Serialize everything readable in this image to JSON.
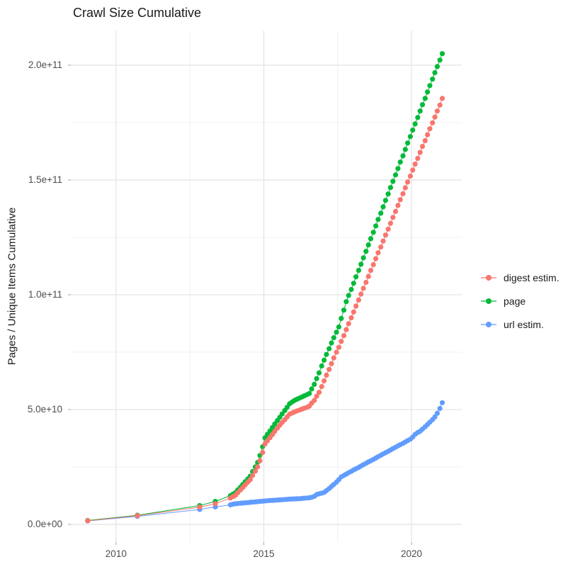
{
  "title": "Crawl Size Cumulative",
  "chart_data": {
    "type": "scatter",
    "title": "Crawl Size Cumulative",
    "xlabel": "",
    "ylabel": "Pages / Unique Items Cumulative",
    "x_unit": "year",
    "y_unit": "items (billions)",
    "xlim": [
      2008.47,
      2021.7
    ],
    "ylim_billions": [
      -7.7,
      215.1
    ],
    "grid": "major+minor",
    "legend_position": "right",
    "x_ticks": {
      "major": [
        {
          "v": 2010,
          "label": "2010"
        },
        {
          "v": 2015,
          "label": "2015"
        },
        {
          "v": 2020,
          "label": "2020"
        }
      ],
      "minor": [
        2012.5,
        2017.5
      ]
    },
    "y_ticks": {
      "major": [
        {
          "v": 0,
          "label": "0.0e+00"
        },
        {
          "v": 50,
          "label": "5.0e+10"
        },
        {
          "v": 100,
          "label": "1.0e+11"
        },
        {
          "v": 150,
          "label": "1.5e+11"
        },
        {
          "v": 200,
          "label": "2.0e+11"
        }
      ],
      "minor": [
        25,
        75,
        125,
        175
      ]
    },
    "draw_order": [
      "url estim.",
      "page",
      "digest estim."
    ],
    "series": [
      {
        "name": "digest estim.",
        "color": "#F8766D",
        "points": [
          [
            2009.04,
            1.6
          ],
          [
            2010.72,
            3.8
          ],
          [
            2012.83,
            7.5
          ],
          [
            2013.36,
            9.0
          ],
          [
            2013.87,
            11.5
          ],
          [
            2013.96,
            12.1
          ],
          [
            2014.04,
            12.7
          ],
          [
            2014.12,
            13.8
          ],
          [
            2014.21,
            15.0
          ],
          [
            2014.29,
            16.1
          ],
          [
            2014.37,
            17.2
          ],
          [
            2014.46,
            18.4
          ],
          [
            2014.54,
            19.5
          ],
          [
            2014.62,
            21.3
          ],
          [
            2014.71,
            23.2
          ],
          [
            2014.79,
            25.0
          ],
          [
            2014.87,
            27.7
          ],
          [
            2014.96,
            31.3
          ],
          [
            2015.04,
            35.0
          ],
          [
            2015.12,
            36.4
          ],
          [
            2015.21,
            37.8
          ],
          [
            2015.29,
            39.1
          ],
          [
            2015.37,
            40.5
          ],
          [
            2015.46,
            41.9
          ],
          [
            2015.54,
            43.2
          ],
          [
            2015.62,
            44.4
          ],
          [
            2015.71,
            45.6
          ],
          [
            2015.79,
            46.8
          ],
          [
            2015.87,
            48.0
          ],
          [
            2015.96,
            48.5
          ],
          [
            2016.04,
            49.0
          ],
          [
            2016.12,
            49.4
          ],
          [
            2016.21,
            49.8
          ],
          [
            2016.29,
            50.2
          ],
          [
            2016.37,
            50.6
          ],
          [
            2016.46,
            51.0
          ],
          [
            2016.54,
            51.5
          ],
          [
            2016.62,
            52.8
          ],
          [
            2016.71,
            54.0
          ],
          [
            2016.79,
            55.8
          ],
          [
            2016.87,
            57.5
          ],
          [
            2016.96,
            60.0
          ],
          [
            2017.04,
            62.5
          ],
          [
            2017.12,
            65.0
          ],
          [
            2017.21,
            67.5
          ],
          [
            2017.29,
            70.0
          ],
          [
            2017.37,
            72.5
          ],
          [
            2017.46,
            75.0
          ],
          [
            2017.54,
            77.1
          ],
          [
            2017.62,
            79.7
          ],
          [
            2017.71,
            82.2
          ],
          [
            2017.79,
            84.8
          ],
          [
            2017.87,
            87.4
          ],
          [
            2017.96,
            90.0
          ],
          [
            2018.04,
            92.5
          ],
          [
            2018.12,
            95.1
          ],
          [
            2018.21,
            97.7
          ],
          [
            2018.29,
            100.3
          ],
          [
            2018.37,
            102.8
          ],
          [
            2018.46,
            105.4
          ],
          [
            2018.54,
            108.0
          ],
          [
            2018.62,
            110.6
          ],
          [
            2018.71,
            113.1
          ],
          [
            2018.79,
            115.7
          ],
          [
            2018.87,
            118.3
          ],
          [
            2018.96,
            120.8
          ],
          [
            2019.04,
            123.4
          ],
          [
            2019.12,
            126.0
          ],
          [
            2019.21,
            128.6
          ],
          [
            2019.29,
            131.1
          ],
          [
            2019.37,
            133.7
          ],
          [
            2019.46,
            136.3
          ],
          [
            2019.54,
            138.9
          ],
          [
            2019.62,
            141.4
          ],
          [
            2019.71,
            144.0
          ],
          [
            2019.79,
            146.6
          ],
          [
            2019.87,
            149.1
          ],
          [
            2019.96,
            151.7
          ],
          [
            2020.04,
            154.3
          ],
          [
            2020.12,
            156.9
          ],
          [
            2020.21,
            159.4
          ],
          [
            2020.29,
            162.0
          ],
          [
            2020.37,
            164.6
          ],
          [
            2020.46,
            167.1
          ],
          [
            2020.54,
            169.7
          ],
          [
            2020.62,
            172.3
          ],
          [
            2020.71,
            174.9
          ],
          [
            2020.79,
            177.4
          ],
          [
            2020.87,
            180.0
          ],
          [
            2020.96,
            182.6
          ],
          [
            2021.04,
            185.5
          ]
        ]
      },
      {
        "name": "page",
        "color": "#00BA38",
        "points": [
          [
            2009.04,
            1.7
          ],
          [
            2010.72,
            4.0
          ],
          [
            2012.83,
            8.2
          ],
          [
            2013.36,
            10.0
          ],
          [
            2013.87,
            12.5
          ],
          [
            2013.96,
            13.2
          ],
          [
            2014.04,
            13.8
          ],
          [
            2014.12,
            15.0
          ],
          [
            2014.21,
            16.2
          ],
          [
            2014.29,
            17.4
          ],
          [
            2014.37,
            18.6
          ],
          [
            2014.46,
            19.8
          ],
          [
            2014.54,
            21.0
          ],
          [
            2014.62,
            23.0
          ],
          [
            2014.71,
            25.0
          ],
          [
            2014.79,
            27.0
          ],
          [
            2014.87,
            30.0
          ],
          [
            2014.96,
            33.8
          ],
          [
            2015.04,
            37.7
          ],
          [
            2015.12,
            39.2
          ],
          [
            2015.21,
            40.7
          ],
          [
            2015.29,
            42.2
          ],
          [
            2015.37,
            43.7
          ],
          [
            2015.46,
            45.2
          ],
          [
            2015.54,
            46.6
          ],
          [
            2015.62,
            48.1
          ],
          [
            2015.71,
            49.6
          ],
          [
            2015.79,
            51.0
          ],
          [
            2015.87,
            52.5
          ],
          [
            2015.96,
            53.3
          ],
          [
            2016.04,
            54.0
          ],
          [
            2016.12,
            54.5
          ],
          [
            2016.21,
            55.0
          ],
          [
            2016.29,
            55.5
          ],
          [
            2016.37,
            56.0
          ],
          [
            2016.46,
            56.5
          ],
          [
            2016.54,
            57.0
          ],
          [
            2016.62,
            59.0
          ],
          [
            2016.71,
            61.0
          ],
          [
            2016.79,
            63.5
          ],
          [
            2016.87,
            66.0
          ],
          [
            2016.96,
            69.0
          ],
          [
            2017.04,
            71.5
          ],
          [
            2017.12,
            74.0
          ],
          [
            2017.21,
            76.5
          ],
          [
            2017.29,
            79.0
          ],
          [
            2017.37,
            81.3
          ],
          [
            2017.46,
            83.7
          ],
          [
            2017.54,
            86.0
          ],
          [
            2017.62,
            89.7
          ],
          [
            2017.71,
            93.3
          ],
          [
            2017.79,
            97.0
          ],
          [
            2017.87,
            99.7
          ],
          [
            2017.96,
            102.3
          ],
          [
            2018.04,
            105.0
          ],
          [
            2018.12,
            107.8
          ],
          [
            2018.21,
            110.6
          ],
          [
            2018.29,
            113.3
          ],
          [
            2018.37,
            116.1
          ],
          [
            2018.46,
            118.9
          ],
          [
            2018.54,
            121.7
          ],
          [
            2018.62,
            124.4
          ],
          [
            2018.71,
            127.2
          ],
          [
            2018.79,
            130.0
          ],
          [
            2018.87,
            132.8
          ],
          [
            2018.96,
            135.5
          ],
          [
            2019.04,
            138.3
          ],
          [
            2019.12,
            141.1
          ],
          [
            2019.21,
            143.9
          ],
          [
            2019.29,
            146.7
          ],
          [
            2019.37,
            149.4
          ],
          [
            2019.46,
            152.2
          ],
          [
            2019.54,
            155.0
          ],
          [
            2019.62,
            157.8
          ],
          [
            2019.71,
            160.5
          ],
          [
            2019.79,
            163.3
          ],
          [
            2019.87,
            166.1
          ],
          [
            2019.96,
            168.9
          ],
          [
            2020.04,
            171.7
          ],
          [
            2020.12,
            174.4
          ],
          [
            2020.21,
            177.2
          ],
          [
            2020.29,
            180.0
          ],
          [
            2020.37,
            182.8
          ],
          [
            2020.46,
            185.5
          ],
          [
            2020.54,
            188.3
          ],
          [
            2020.62,
            191.1
          ],
          [
            2020.71,
            193.9
          ],
          [
            2020.79,
            196.7
          ],
          [
            2020.87,
            199.4
          ],
          [
            2020.96,
            202.2
          ],
          [
            2021.04,
            205.0
          ]
        ]
      },
      {
        "name": "url estim.",
        "color": "#619CFF",
        "points": [
          [
            2009.04,
            1.5
          ],
          [
            2010.72,
            3.5
          ],
          [
            2012.83,
            6.5
          ],
          [
            2013.36,
            7.6
          ],
          [
            2013.87,
            8.5
          ],
          [
            2013.96,
            8.8
          ],
          [
            2014.04,
            9.0
          ],
          [
            2014.12,
            9.1
          ],
          [
            2014.21,
            9.2
          ],
          [
            2014.29,
            9.3
          ],
          [
            2014.37,
            9.4
          ],
          [
            2014.46,
            9.5
          ],
          [
            2014.54,
            9.6
          ],
          [
            2014.62,
            9.7
          ],
          [
            2014.71,
            9.8
          ],
          [
            2014.79,
            9.9
          ],
          [
            2014.87,
            10.0
          ],
          [
            2014.96,
            10.1
          ],
          [
            2015.04,
            10.2
          ],
          [
            2015.12,
            10.3
          ],
          [
            2015.21,
            10.4
          ],
          [
            2015.29,
            10.45
          ],
          [
            2015.37,
            10.5
          ],
          [
            2015.46,
            10.6
          ],
          [
            2015.54,
            10.7
          ],
          [
            2015.62,
            10.75
          ],
          [
            2015.71,
            10.8
          ],
          [
            2015.79,
            10.9
          ],
          [
            2015.87,
            11.0
          ],
          [
            2015.96,
            11.05
          ],
          [
            2016.04,
            11.1
          ],
          [
            2016.12,
            11.15
          ],
          [
            2016.21,
            11.2
          ],
          [
            2016.29,
            11.3
          ],
          [
            2016.37,
            11.4
          ],
          [
            2016.46,
            11.5
          ],
          [
            2016.54,
            11.6
          ],
          [
            2016.62,
            11.8
          ],
          [
            2016.71,
            12.2
          ],
          [
            2016.79,
            13.0
          ],
          [
            2016.87,
            13.3
          ],
          [
            2016.96,
            13.6
          ],
          [
            2017.04,
            13.9
          ],
          [
            2017.12,
            14.7
          ],
          [
            2017.21,
            15.6
          ],
          [
            2017.29,
            16.5
          ],
          [
            2017.37,
            17.4
          ],
          [
            2017.46,
            18.4
          ],
          [
            2017.54,
            19.5
          ],
          [
            2017.62,
            20.7
          ],
          [
            2017.71,
            21.3
          ],
          [
            2017.79,
            21.9
          ],
          [
            2017.87,
            22.5
          ],
          [
            2017.96,
            23.1
          ],
          [
            2018.04,
            23.7
          ],
          [
            2018.12,
            24.2
          ],
          [
            2018.21,
            24.8
          ],
          [
            2018.29,
            25.4
          ],
          [
            2018.37,
            26.0
          ],
          [
            2018.46,
            26.6
          ],
          [
            2018.54,
            27.2
          ],
          [
            2018.62,
            27.7
          ],
          [
            2018.71,
            28.3
          ],
          [
            2018.79,
            28.9
          ],
          [
            2018.87,
            29.5
          ],
          [
            2018.96,
            30.1
          ],
          [
            2019.04,
            30.7
          ],
          [
            2019.12,
            31.2
          ],
          [
            2019.21,
            31.8
          ],
          [
            2019.29,
            32.4
          ],
          [
            2019.37,
            33.0
          ],
          [
            2019.46,
            33.6
          ],
          [
            2019.54,
            34.2
          ],
          [
            2019.62,
            34.7
          ],
          [
            2019.71,
            35.3
          ],
          [
            2019.79,
            35.9
          ],
          [
            2019.87,
            36.5
          ],
          [
            2019.96,
            37.1
          ],
          [
            2020.04,
            38.0
          ],
          [
            2020.12,
            39.2
          ],
          [
            2020.21,
            40.0
          ],
          [
            2020.29,
            40.6
          ],
          [
            2020.37,
            41.5
          ],
          [
            2020.46,
            42.5
          ],
          [
            2020.54,
            43.5
          ],
          [
            2020.62,
            44.5
          ],
          [
            2020.71,
            45.6
          ],
          [
            2020.79,
            46.8
          ],
          [
            2020.87,
            48.4
          ],
          [
            2020.96,
            50.5
          ],
          [
            2021.04,
            53.0
          ]
        ]
      }
    ],
    "colors": {
      "major_grid": "#e5e5e5",
      "minor_grid": "#f0f0f0",
      "tick_mark": "#b3b3b3",
      "tick_text": "#4d4d4d",
      "title_text": "#1a1a1a",
      "background": "#ffffff"
    }
  }
}
